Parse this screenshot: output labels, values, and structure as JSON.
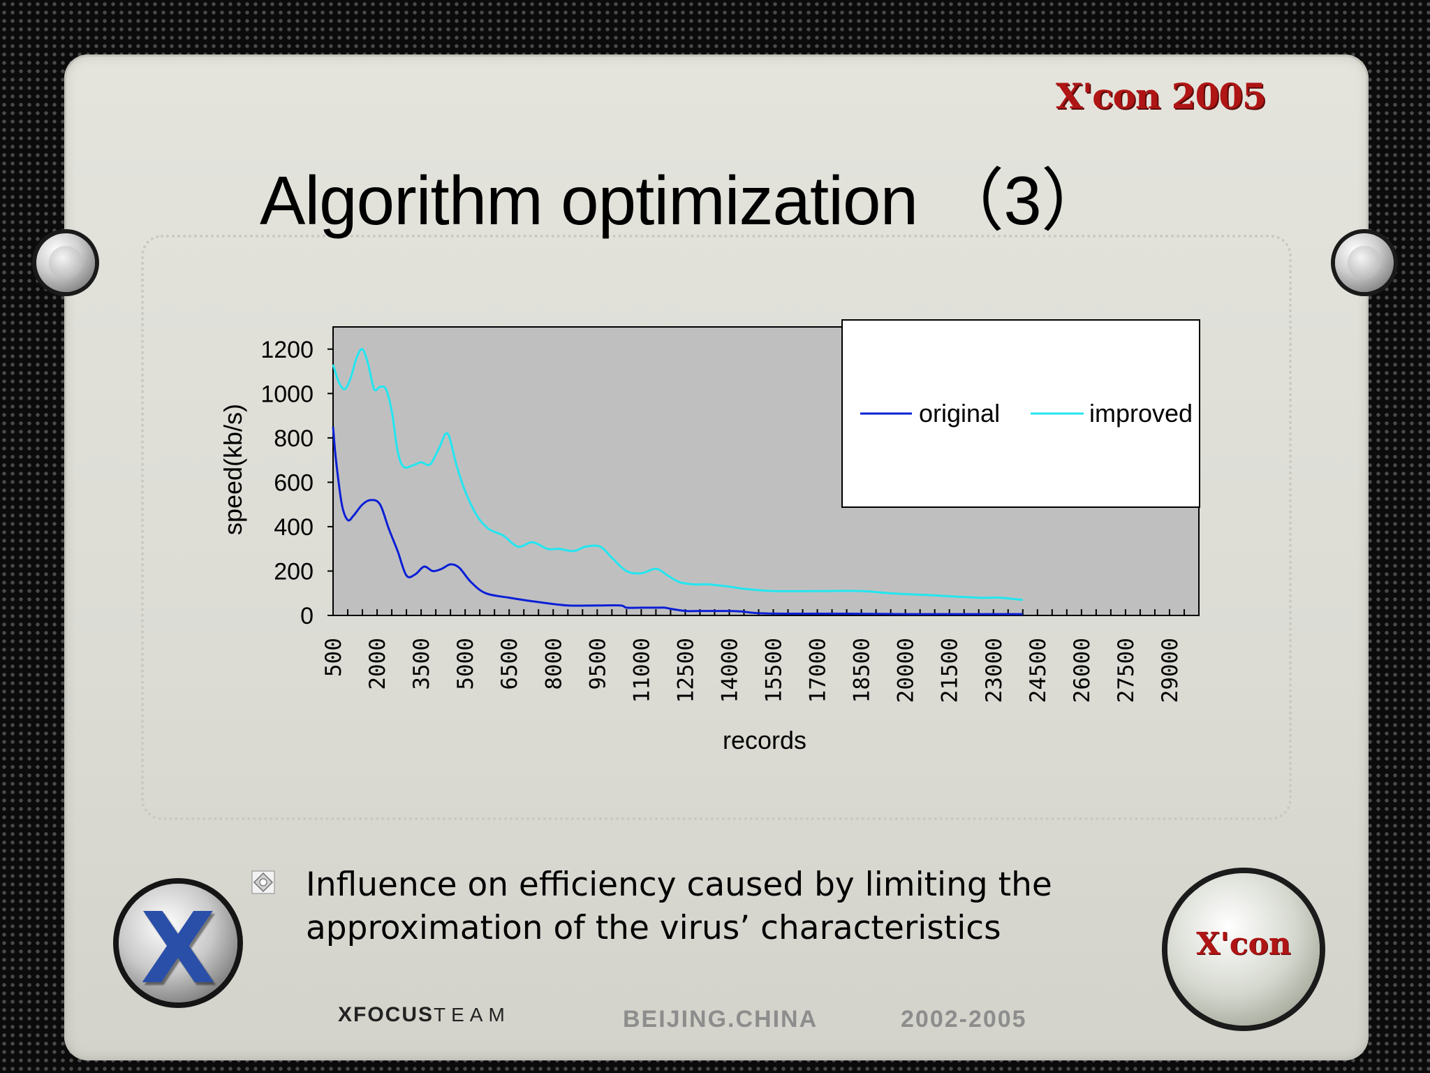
{
  "slide": {
    "title": "Algorithm optimization （3）",
    "logo_top": "X'con 2005",
    "bullet": "Influence on efficiency caused by limiting the approximation of the virus’ characteristics",
    "badge_right": "X'con",
    "footer": {
      "team_name": "XFOCUS",
      "team_suffix": "TEAM",
      "location": "BEIJING.CHINA",
      "years": "2002-2005"
    }
  },
  "colors": {
    "original": "#0a1fd6",
    "improved": "#22e6f0",
    "plot_background": "#c0bfc0"
  },
  "chart_data": {
    "type": "line",
    "title": "",
    "xlabel": "records",
    "ylabel": "speed(kb/s)",
    "ylim": [
      0,
      1300
    ],
    "yticks": [
      0,
      200,
      400,
      600,
      800,
      1000,
      1200
    ],
    "xlim": [
      500,
      30000
    ],
    "xticks": [
      "500",
      "2000",
      "3500",
      "5000",
      "6500",
      "8000",
      "9500",
      "11000",
      "12500",
      "14000",
      "15500",
      "17000",
      "18500",
      "20000",
      "21500",
      "23000",
      "24500",
      "26000",
      "27500",
      "29000"
    ],
    "legend_position": "top-right",
    "grid": false,
    "series": [
      {
        "name": "original",
        "x": [
          500,
          600,
          800,
          1000,
          1200,
          1500,
          1800,
          2100,
          2400,
          2700,
          3000,
          3300,
          3600,
          3900,
          4200,
          4500,
          4800,
          5200,
          5700,
          6500,
          7500,
          8500,
          9500,
          10300,
          10500,
          11000,
          11500,
          11800,
          12000,
          12500,
          13000,
          14000,
          14400,
          15000,
          16000,
          18000,
          20000,
          22000,
          24000
        ],
        "y": [
          850,
          700,
          500,
          430,
          450,
          500,
          520,
          500,
          390,
          290,
          180,
          185,
          220,
          200,
          210,
          230,
          215,
          150,
          100,
          80,
          60,
          45,
          45,
          45,
          35,
          35,
          35,
          35,
          30,
          20,
          20,
          20,
          18,
          10,
          8,
          8,
          6,
          6,
          6
        ]
      },
      {
        "name": "improved",
        "x": [
          500,
          700,
          900,
          1100,
          1300,
          1500,
          1700,
          1900,
          2100,
          2300,
          2500,
          2700,
          2900,
          3200,
          3500,
          3800,
          4100,
          4400,
          4700,
          5000,
          5400,
          5800,
          6300,
          6800,
          7300,
          7800,
          8200,
          8700,
          9100,
          9600,
          10000,
          10500,
          11000,
          11500,
          11900,
          12300,
          12800,
          13300,
          14000,
          14500,
          15500,
          17000,
          18500,
          19500,
          21000,
          22500,
          23200,
          24000
        ],
        "y": [
          1130,
          1050,
          1020,
          1070,
          1160,
          1200,
          1130,
          1020,
          1030,
          1020,
          920,
          740,
          670,
          675,
          690,
          680,
          750,
          820,
          680,
          560,
          450,
          390,
          360,
          310,
          330,
          300,
          300,
          290,
          310,
          310,
          260,
          200,
          190,
          210,
          180,
          150,
          140,
          140,
          130,
          120,
          110,
          110,
          110,
          100,
          90,
          80,
          80,
          70
        ]
      }
    ]
  }
}
